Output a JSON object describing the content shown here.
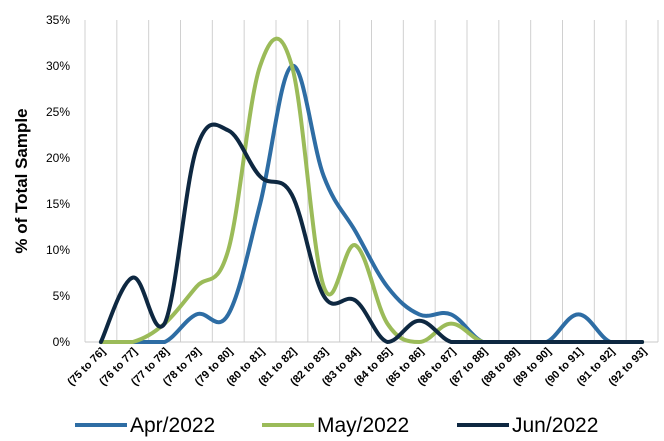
{
  "chart_data": {
    "type": "line",
    "title": "",
    "xlabel": "",
    "ylabel": "% of Total Sample",
    "ylim": [
      0,
      35
    ],
    "yticks": [
      "0%",
      "5%",
      "10%",
      "15%",
      "20%",
      "25%",
      "30%",
      "35%"
    ],
    "grid": "vertical",
    "legend_position": "bottom",
    "categories": [
      "(75 to 76]",
      "(76 to 77]",
      "(77 to 78]",
      "(78 to 79]",
      "(79 to 80]",
      "(80 to 81]",
      "(81 to 82]",
      "(82 to 83]",
      "(83 to 84]",
      "(84 to 85]",
      "(85 to 86]",
      "(86 to 87]",
      "(87 to 88]",
      "(88 to 89]",
      "(89 to 90]",
      "(90 to 91]",
      "(91 to 92]",
      "(92 to 93]"
    ],
    "series": [
      {
        "name": "Apr/2022",
        "color": "#2E6DA4",
        "values": [
          0,
          0,
          0,
          3,
          3,
          15,
          30,
          18,
          12,
          6,
          3,
          3,
          0,
          0,
          0,
          3,
          0,
          0
        ]
      },
      {
        "name": "May/2022",
        "color": "#9BBB59",
        "values": [
          0,
          0,
          2,
          6,
          10,
          30,
          30,
          6,
          10.5,
          2,
          0,
          2,
          0,
          0,
          0,
          0,
          0,
          0
        ]
      },
      {
        "name": "Jun/2022",
        "color": "#0E2841",
        "values": [
          0,
          7,
          2,
          21,
          23,
          18,
          16,
          5,
          4.5,
          0,
          2.3,
          0,
          0,
          0,
          0,
          0,
          0,
          0
        ]
      }
    ]
  }
}
